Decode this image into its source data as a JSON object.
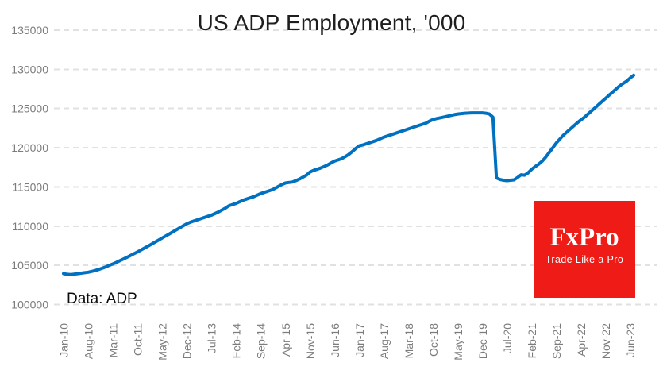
{
  "chart_data": {
    "type": "line",
    "title": "US ADP Employment, '000",
    "source_note": "Data: ADP",
    "unit": "thousands of jobs",
    "frequency": "monthly",
    "x_start": "Jan-2010",
    "x_end": "Jul-2023",
    "grid": "horizontal-dashed",
    "legend": "none",
    "ylim": [
      100000,
      135000
    ],
    "y_ticks": [
      135000,
      130000,
      125000,
      120000,
      115000,
      110000,
      105000,
      100000
    ],
    "x_tick_labels": [
      "Jan-10",
      "Aug-10",
      "Mar-11",
      "Oct-11",
      "May-12",
      "Dec-12",
      "Jul-13",
      "Feb-14",
      "Sep-14",
      "Apr-15",
      "Nov-15",
      "Jun-16",
      "Jan-17",
      "Aug-17",
      "Mar-18",
      "Oct-18",
      "May-19",
      "Dec-19",
      "Jul-20",
      "Feb-21",
      "Sep-21",
      "Apr-22",
      "Nov-22",
      "Jun-23"
    ],
    "x_tick_interval_months": 7,
    "series": [
      {
        "name": "US ADP Employment, '000",
        "values": [
          103950,
          103860,
          103820,
          103880,
          103940,
          104000,
          104060,
          104120,
          104220,
          104340,
          104480,
          104630,
          104800,
          104990,
          105180,
          105380,
          105590,
          105800,
          106020,
          106250,
          106480,
          106710,
          106950,
          107200,
          107450,
          107700,
          107960,
          108220,
          108480,
          108740,
          109000,
          109260,
          109520,
          109780,
          110040,
          110300,
          110500,
          110650,
          110800,
          110950,
          111100,
          111250,
          111400,
          111600,
          111800,
          112050,
          112300,
          112600,
          112750,
          112900,
          113100,
          113300,
          113450,
          113600,
          113750,
          113950,
          114150,
          114300,
          114450,
          114600,
          114800,
          115050,
          115300,
          115500,
          115570,
          115620,
          115800,
          116000,
          116250,
          116500,
          116900,
          117100,
          117250,
          117400,
          117600,
          117800,
          118050,
          118300,
          118450,
          118600,
          118850,
          119150,
          119500,
          119900,
          120250,
          120350,
          120500,
          120650,
          120800,
          120950,
          121150,
          121350,
          121500,
          121650,
          121800,
          121950,
          122100,
          122250,
          122400,
          122550,
          122700,
          122850,
          123000,
          123150,
          123400,
          123600,
          123720,
          123820,
          123920,
          124020,
          124120,
          124220,
          124300,
          124350,
          124400,
          124420,
          124450,
          124450,
          124450,
          124450,
          124400,
          124300,
          123900,
          116150,
          115950,
          115850,
          115800,
          115850,
          115900,
          116200,
          116550,
          116500,
          116800,
          117250,
          117600,
          117900,
          118300,
          118800,
          119400,
          120000,
          120600,
          121100,
          121600,
          122000,
          122400,
          122800,
          123200,
          123550,
          123900,
          124300,
          124700,
          125100,
          125500,
          125900,
          126300,
          126700,
          127100,
          127500,
          127900,
          128200,
          128500,
          128900,
          129250
        ]
      }
    ]
  },
  "logo": {
    "wordmark": "FxPro",
    "tagline": "Trade Like a Pro"
  },
  "colors": {
    "line": "#0070C0",
    "grid": "#E1E1E1",
    "axis_text": "#7C7C7C",
    "title_text": "#1E1E1E",
    "note_text": "#0D0D0D",
    "logo_bg": "#EE1B17",
    "logo_text": "#FFFFFF",
    "background": "#FFFFFF"
  }
}
